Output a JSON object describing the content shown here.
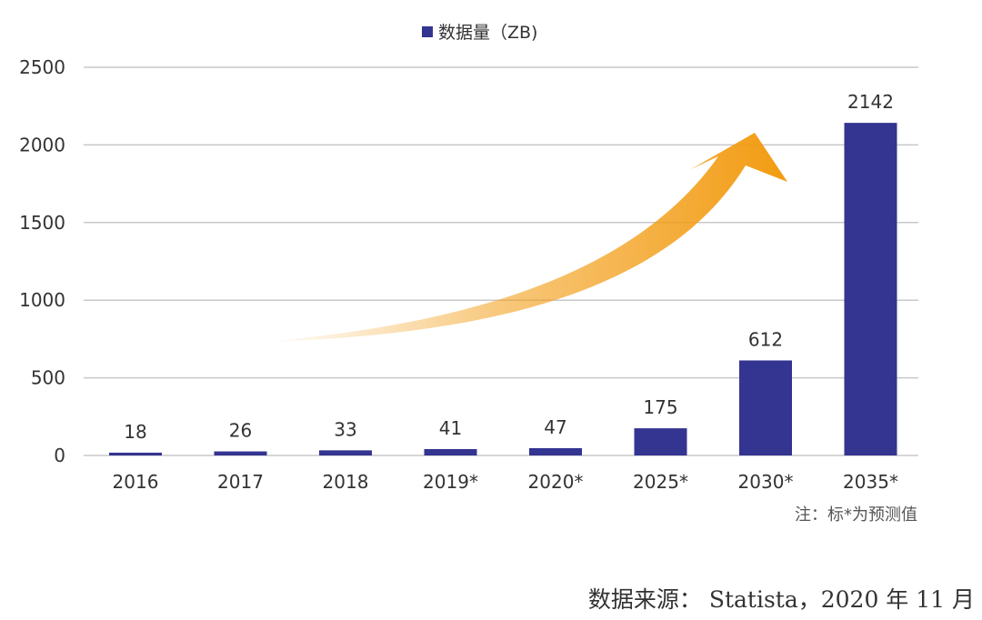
{
  "chart_data": {
    "type": "bar",
    "categories": [
      "2016",
      "2017",
      "2018",
      "2019*",
      "2020*",
      "2025*",
      "2030*",
      "2035*"
    ],
    "series": [
      {
        "name": "数据量（ZB)",
        "values": [
          18,
          26,
          33,
          41,
          47,
          175,
          612,
          2142
        ],
        "color": "#343491"
      }
    ],
    "ylim": [
      0,
      2500
    ],
    "yticks": [
      0,
      500,
      1000,
      1500,
      2000,
      2500
    ],
    "grid": true,
    "legend_position": "top-center",
    "annotation": {
      "type": "arrow",
      "color": "#f29b11",
      "direction": "rising toward 2030*"
    },
    "note": "注：标*为预测值",
    "source": "数据来源：  Statista，2020 年 11 月"
  },
  "colors": {
    "bar": "#343491",
    "grid": "#c8c8c8",
    "arrow": "#f29b11"
  }
}
